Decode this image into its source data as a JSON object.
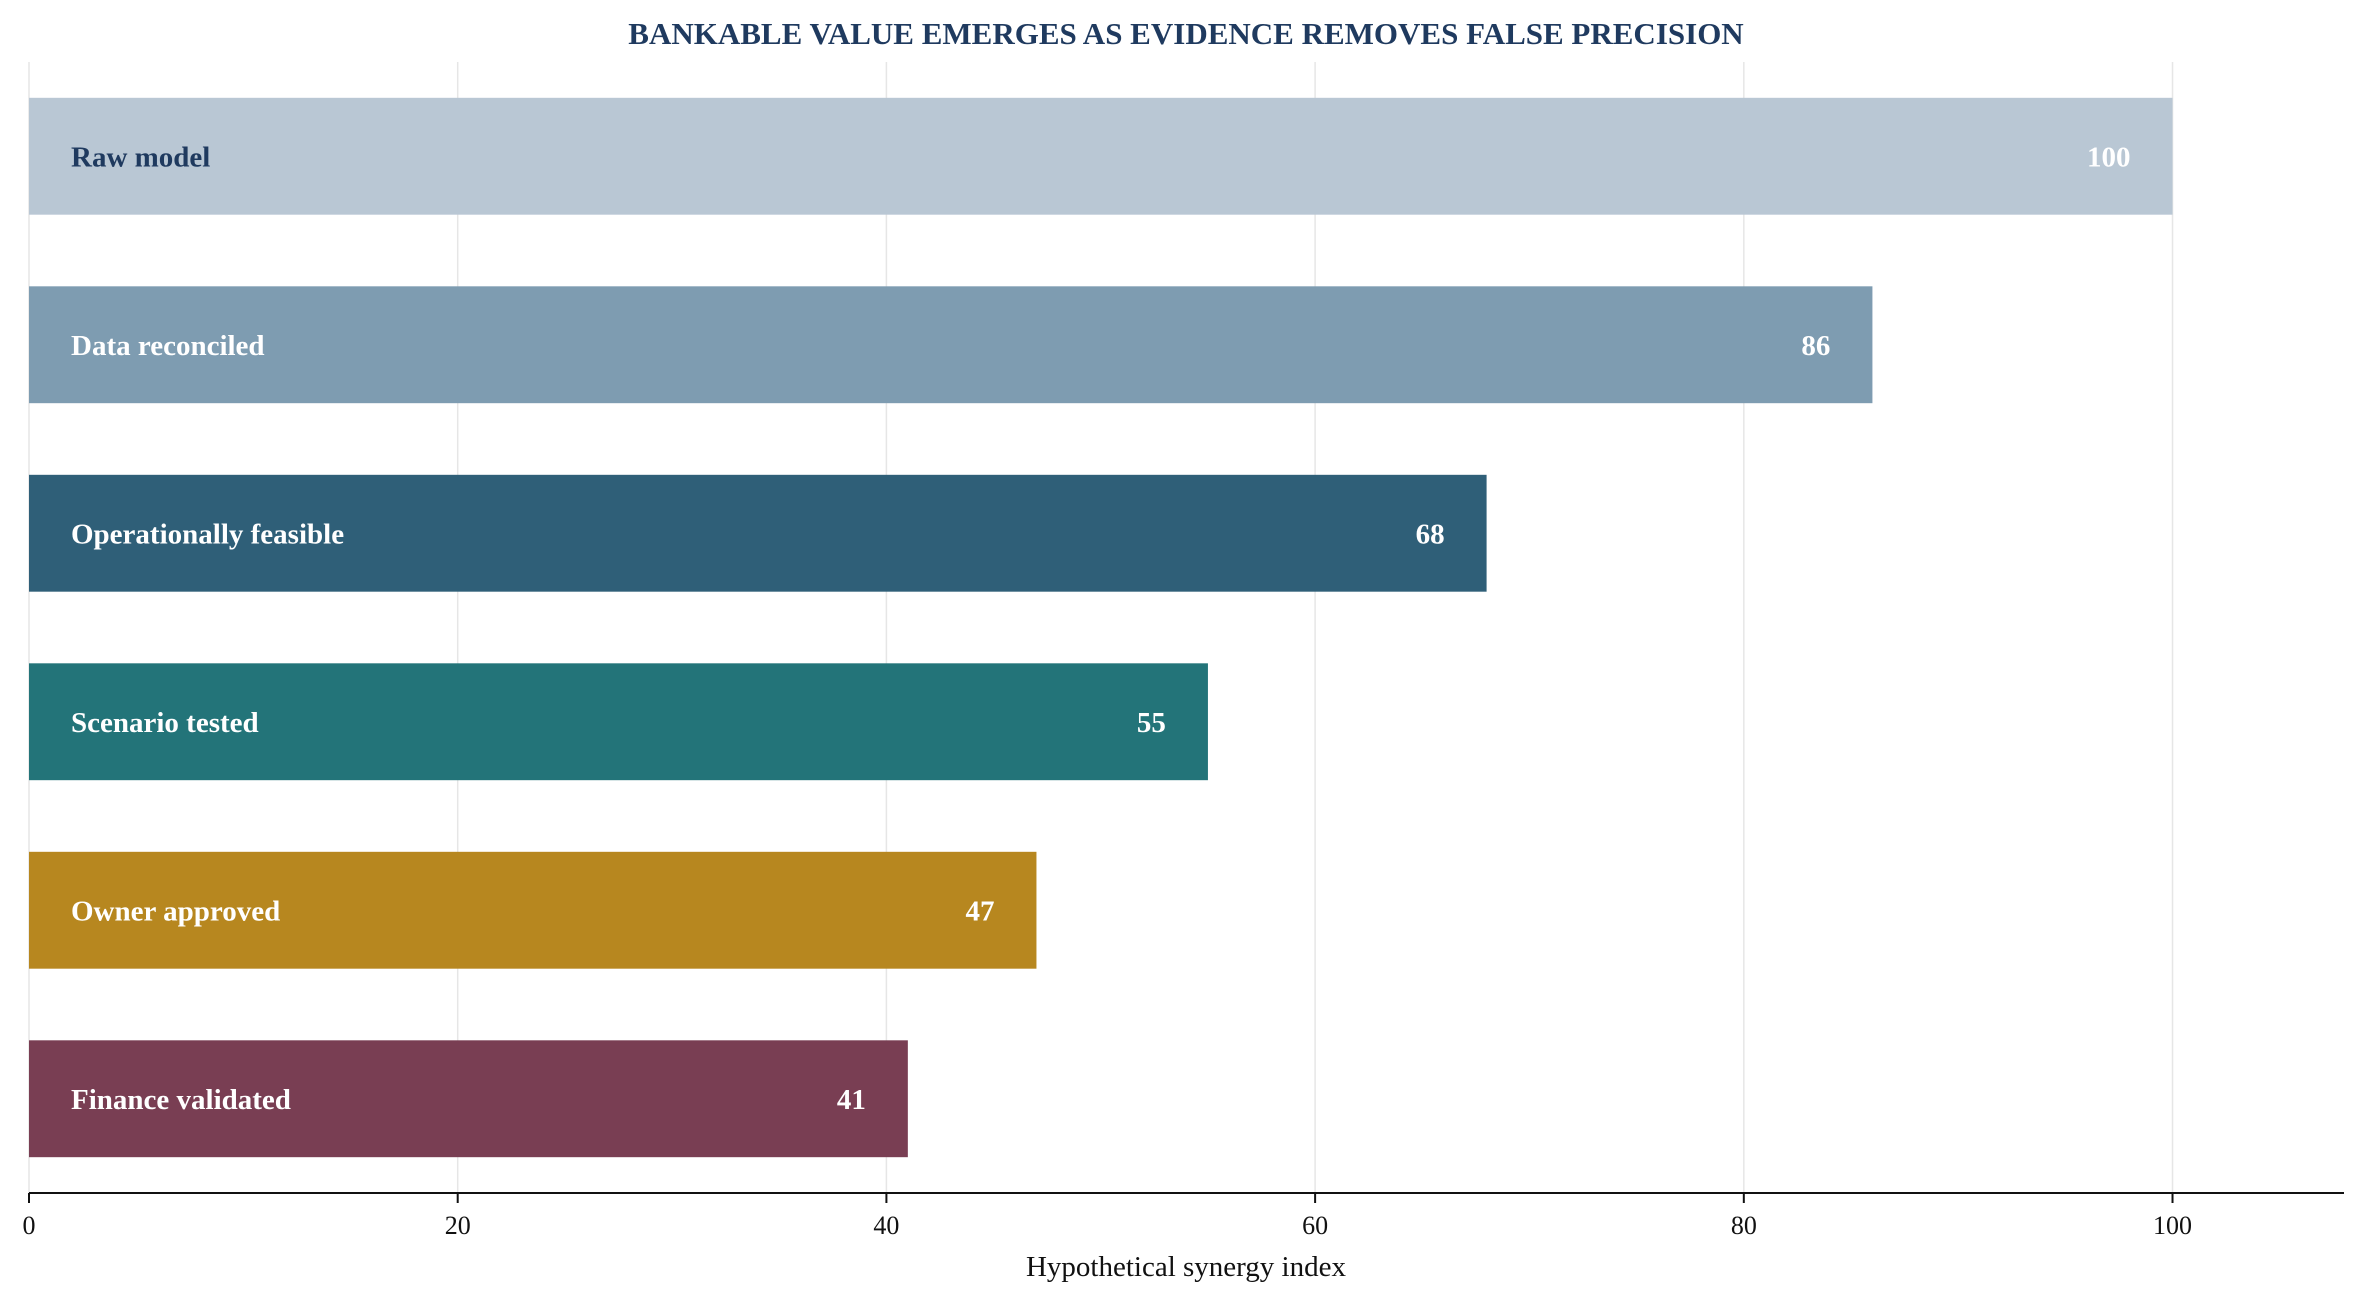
{
  "chart_data": {
    "type": "bar",
    "orientation": "horizontal",
    "title": "BANKABLE VALUE EMERGES AS EVIDENCE REMOVES FALSE PRECISION",
    "xlabel": "Hypothetical synergy index",
    "ylabel": "",
    "xlim": [
      0,
      108
    ],
    "xticks": [
      0,
      20,
      40,
      60,
      80,
      100
    ],
    "grid": "vertical",
    "legend": "none",
    "colors": {
      "title": "#1f3a5f",
      "dark_label": "#1f3a5f",
      "light_label": "#ffffff"
    },
    "categories": [
      "Raw model",
      "Data reconciled",
      "Operationally feasible",
      "Scenario tested",
      "Owner approved",
      "Finance validated"
    ],
    "values": [
      100,
      86,
      68,
      55,
      47,
      41
    ],
    "bar_colors": [
      "#b9c7d4",
      "#7e9cb1",
      "#2f5f78",
      "#237479",
      "#b7871f",
      "#793e53"
    ],
    "label_colors": [
      "#1f3a5f",
      "#ffffff",
      "#ffffff",
      "#ffffff",
      "#ffffff",
      "#ffffff"
    ]
  }
}
